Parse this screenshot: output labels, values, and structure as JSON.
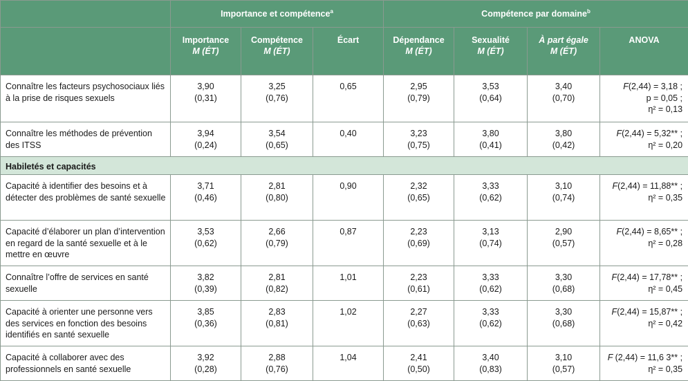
{
  "header": {
    "group1": "Importance et compétence",
    "group1_sup": "a",
    "group2": "Compétence par domaine",
    "group2_sup": "b",
    "cols": [
      {
        "title": "Importance",
        "sub": "M (ÉT)"
      },
      {
        "title": "Compétence",
        "sub": "M (ÉT)"
      },
      {
        "title": "Écart",
        "sub": ""
      },
      {
        "title": "Dépendance",
        "sub": "M (ÉT)"
      },
      {
        "title": "Sexualité",
        "sub": "M (ÉT)"
      },
      {
        "title": "À part égale",
        "sub": "M (ÉT)"
      },
      {
        "title": "ANOVA",
        "sub": ""
      }
    ]
  },
  "rows": [
    {
      "label": "Connaître les facteurs psychosociaux liés à la prise de risques sexuels",
      "imp": "3,90",
      "imp_sd": "(0,31)",
      "comp": "3,25",
      "comp_sd": "(0,76)",
      "ecart": "0,65",
      "dep": "2,95",
      "dep_sd": "(0,79)",
      "sex": "3,53",
      "sex_sd": "(0,64)",
      "part": "3,40",
      "part_sd": "(0,70)",
      "anova1": "(2,44) = 3,18 ;",
      "anova2": "p = 0,05 ;",
      "anova3": "η² = 0,13"
    },
    {
      "label": "Connaître les méthodes de prévention des ITSS",
      "imp": "3,94",
      "imp_sd": "(0,24)",
      "comp": "3,54",
      "comp_sd": "(0,65)",
      "ecart": "0,40",
      "dep": "3,23",
      "dep_sd": "(0,75)",
      "sex": "3,80",
      "sex_sd": "(0,41)",
      "part": "3,80",
      "part_sd": "(0,42)",
      "anova1": "(2,44) = 5,32** ;",
      "anova2": "η² = 0,20",
      "anova3": ""
    }
  ],
  "section_title": "Habiletés et capacités",
  "rows2": [
    {
      "label": "Capacité à identifier des besoins et à détecter des problèmes de santé sexuelle",
      "imp": "3,71",
      "imp_sd": "(0,46)",
      "comp": "2,81",
      "comp_sd": "(0,80)",
      "ecart": "0,90",
      "dep": "2,32",
      "dep_sd": "(0,65)",
      "sex": "3,33",
      "sex_sd": "(0,62)",
      "part": "3,10",
      "part_sd": "(0,74)",
      "anova1": "(2,44) = 11,88** ;",
      "anova2": "η² = 0,35"
    },
    {
      "label": "Capacité d’élaborer un plan d’intervention en regard de la santé sexuelle et à le mettre en œuvre",
      "imp": "3,53",
      "imp_sd": "(0,62)",
      "comp": "2,66",
      "comp_sd": "(0,79)",
      "ecart": "0,87",
      "dep": "2,23",
      "dep_sd": "(0,69)",
      "sex": "3,13",
      "sex_sd": "(0,74)",
      "part": "2,90",
      "part_sd": "(0,57)",
      "anova1": "(2,44) = 8,65** ;",
      "anova2": "η² = 0,28"
    },
    {
      "label": "Connaître l’offre de services en santé sexuelle",
      "imp": "3,82",
      "imp_sd": "(0,39)",
      "comp": "2,81",
      "comp_sd": "(0,82)",
      "ecart": "1,01",
      "dep": "2,23",
      "dep_sd": "(0,61)",
      "sex": "3,33",
      "sex_sd": "(0,62)",
      "part": "3,30",
      "part_sd": "(0,68)",
      "anova1": "(2,44) = 17,78** ;",
      "anova2": "η² = 0,45"
    },
    {
      "label": "Capacité à orienter une personne vers des services en fonction des besoins identifiés en santé sexuelle",
      "imp": "3,85",
      "imp_sd": "(0,36)",
      "comp": "2,83",
      "comp_sd": "(0,81)",
      "ecart": "1,02",
      "dep": "2,27",
      "dep_sd": "(0,63)",
      "sex": "3,33",
      "sex_sd": "(0,62)",
      "part": "3,30",
      "part_sd": "(0,68)",
      "anova1": "(2,44) = 15,87** ;",
      "anova2": "η² = 0,42"
    },
    {
      "label": "Capacité à collaborer avec des professionnels en santé sexuelle",
      "imp": "3,92",
      "imp_sd": "(0,28)",
      "comp": "2,88",
      "comp_sd": "(0,76)",
      "ecart": "1,04",
      "dep": "2,41",
      "dep_sd": "(0,50)",
      "sex": "3,40",
      "sex_sd": "(0,83)",
      "part": "3,10",
      "part_sd": "(0,57)",
      "anova1": "(2,44) = 11,6 3** ;",
      "anova2": "η² = 0,35"
    }
  ]
}
